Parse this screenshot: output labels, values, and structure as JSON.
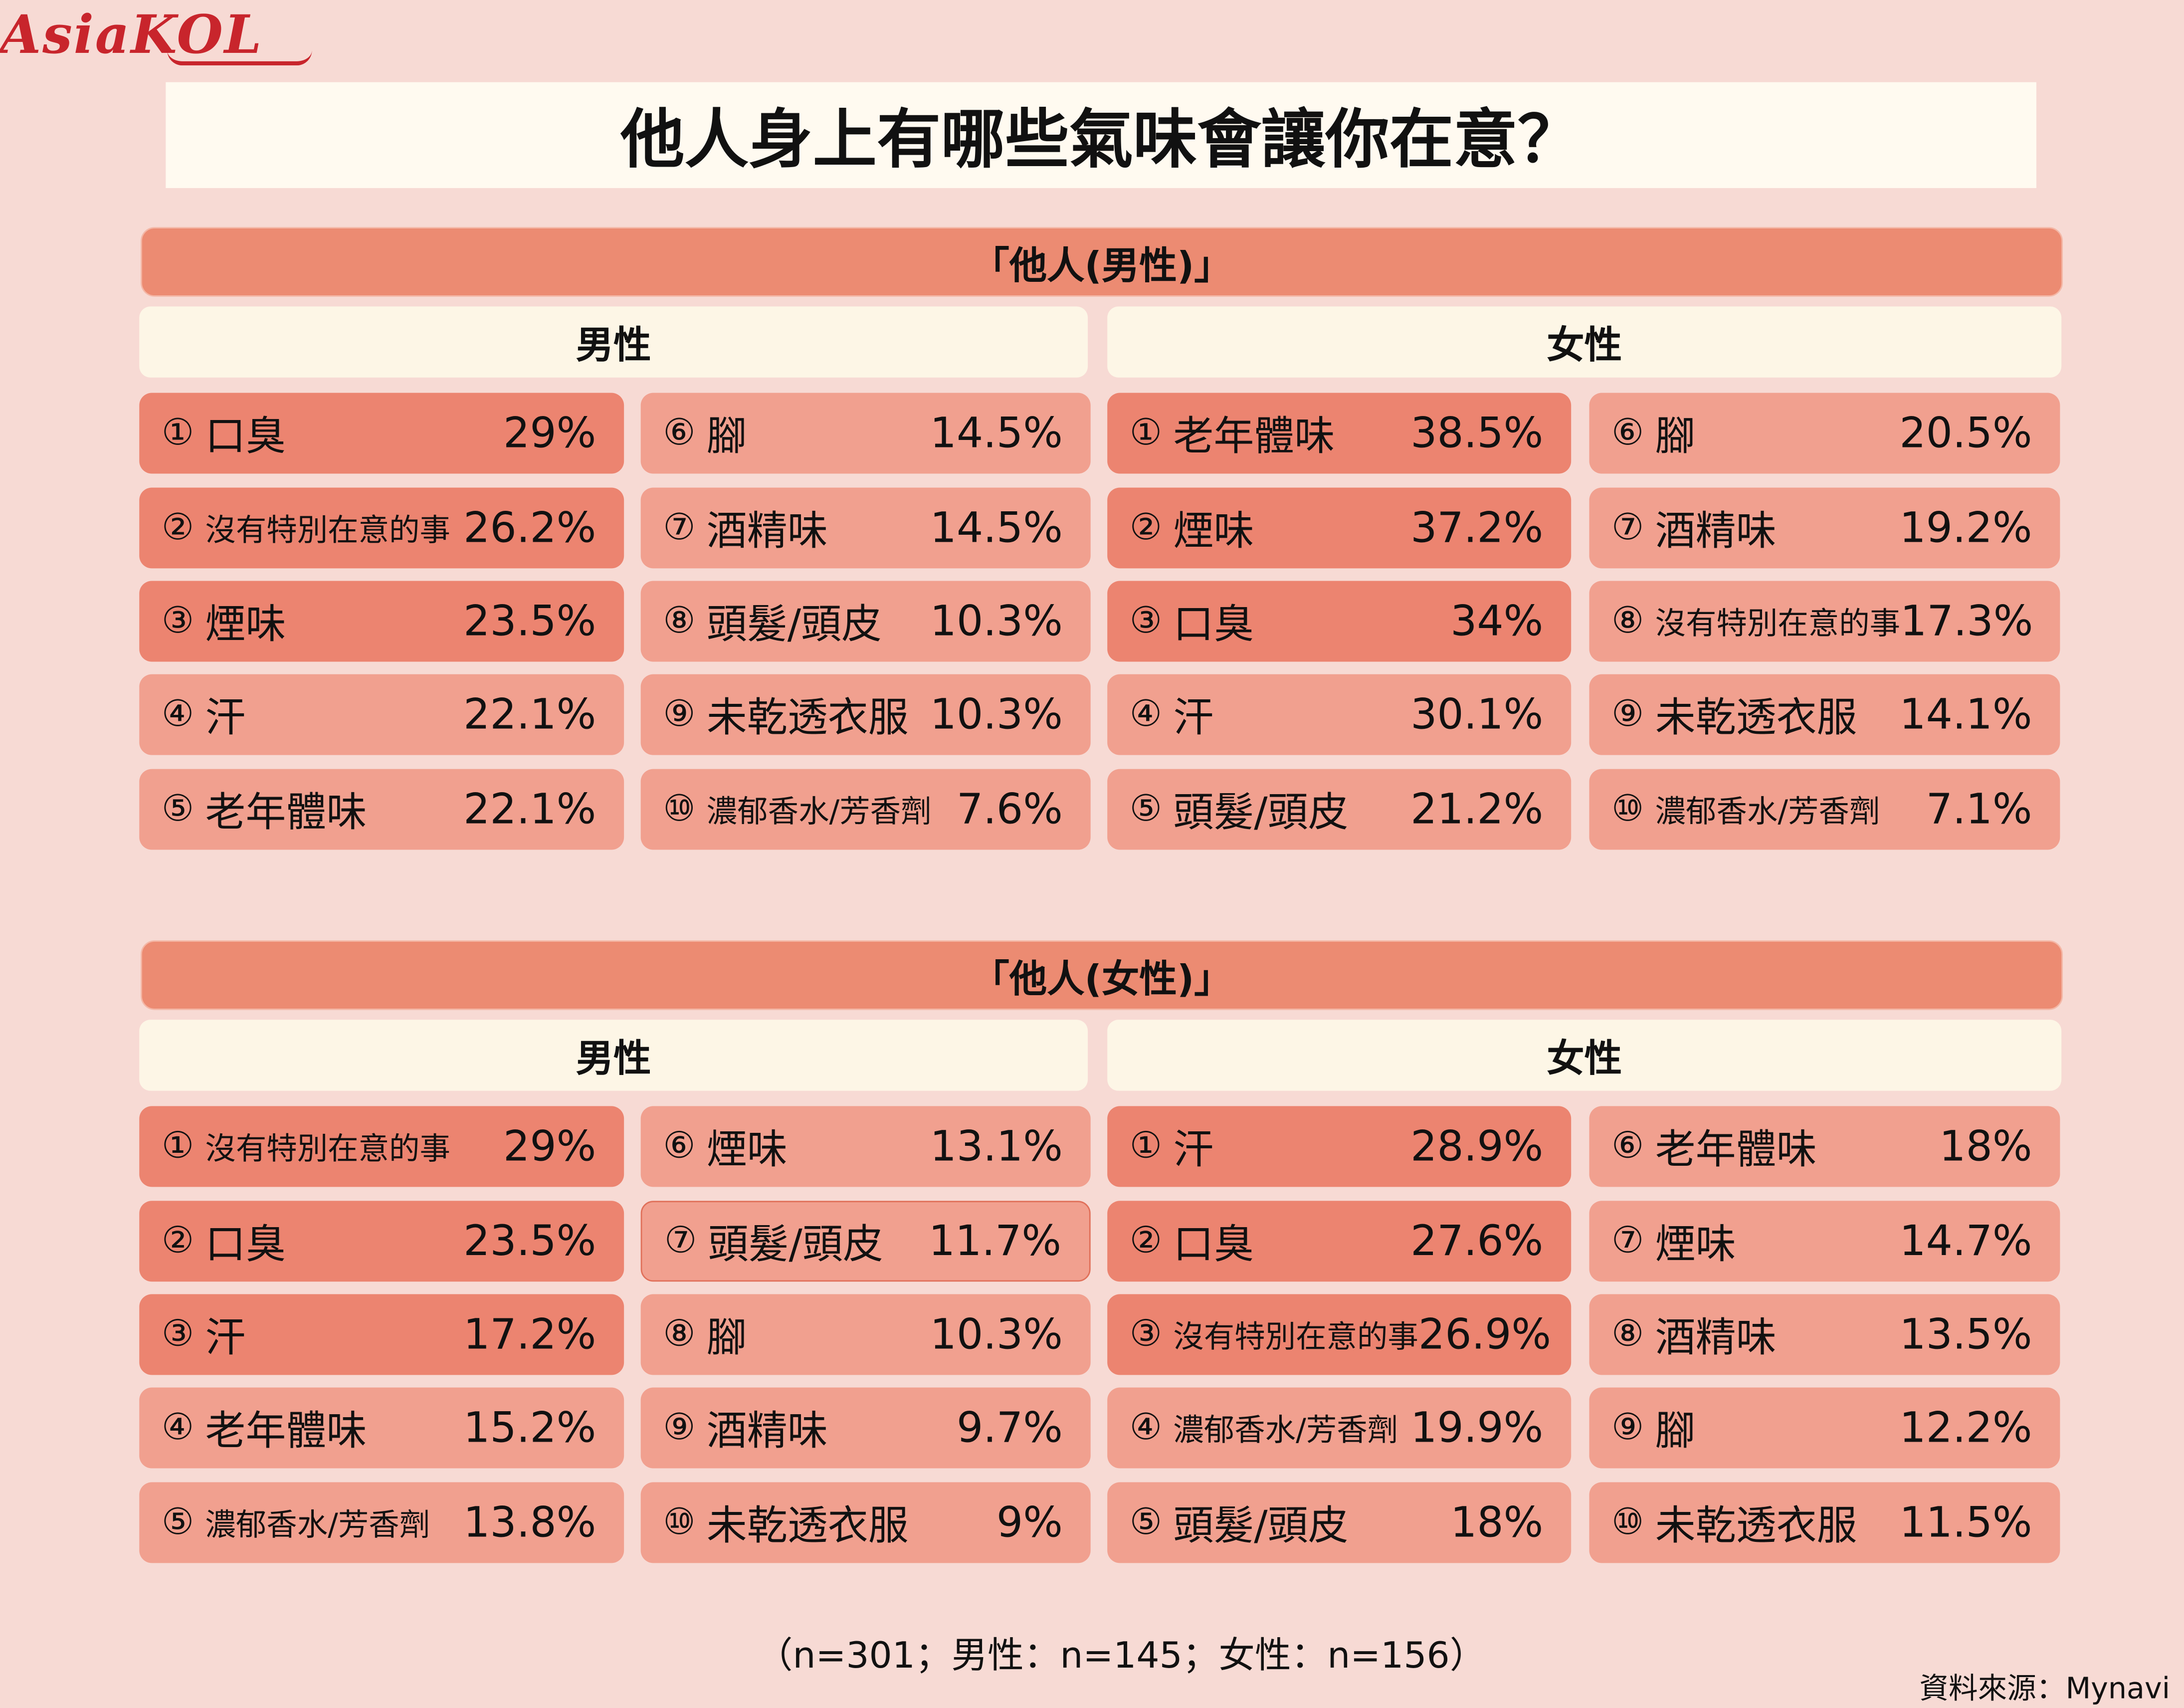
{
  "logo": "AsiaKOL",
  "title": "他人身上有哪些氣味會讓你在意？",
  "sections": [
    {
      "header": "「他人(男性)」",
      "groups": [
        {
          "label": "男性",
          "columns": [
            [
              {
                "rank": "①",
                "label": "口臭",
                "value": "29%"
              },
              {
                "rank": "②",
                "label": "沒有特別在意的事",
                "value": "26.2%"
              },
              {
                "rank": "③",
                "label": "煙味",
                "value": "23.5%"
              },
              {
                "rank": "④",
                "label": "汗",
                "value": "22.1%"
              },
              {
                "rank": "⑤",
                "label": "老年體味",
                "value": "22.1%"
              }
            ],
            [
              {
                "rank": "⑥",
                "label": "腳",
                "value": "14.5%"
              },
              {
                "rank": "⑦",
                "label": "酒精味",
                "value": "14.5%"
              },
              {
                "rank": "⑧",
                "label": "頭髮/頭皮",
                "value": "10.3%"
              },
              {
                "rank": "⑨",
                "label": "未乾透衣服",
                "value": "10.3%"
              },
              {
                "rank": "⑩",
                "label": "濃郁香水/芳香劑",
                "value": "7.6%"
              }
            ]
          ]
        },
        {
          "label": "女性",
          "columns": [
            [
              {
                "rank": "①",
                "label": "老年體味",
                "value": "38.5%"
              },
              {
                "rank": "②",
                "label": "煙味",
                "value": "37.2%"
              },
              {
                "rank": "③",
                "label": "口臭",
                "value": "34%"
              },
              {
                "rank": "④",
                "label": "汗",
                "value": "30.1%"
              },
              {
                "rank": "⑤",
                "label": "頭髮/頭皮",
                "value": "21.2%"
              }
            ],
            [
              {
                "rank": "⑥",
                "label": "腳",
                "value": "20.5%"
              },
              {
                "rank": "⑦",
                "label": "酒精味",
                "value": "19.2%"
              },
              {
                "rank": "⑧",
                "label": "沒有特別在意的事",
                "value": "17.3%"
              },
              {
                "rank": "⑨",
                "label": "未乾透衣服",
                "value": "14.1%"
              },
              {
                "rank": "⑩",
                "label": "濃郁香水/芳香劑",
                "value": "7.1%"
              }
            ]
          ]
        }
      ]
    },
    {
      "header": "「他人(女性)」",
      "groups": [
        {
          "label": "男性",
          "columns": [
            [
              {
                "rank": "①",
                "label": "沒有特別在意的事",
                "value": "29%"
              },
              {
                "rank": "②",
                "label": "口臭",
                "value": "23.5%"
              },
              {
                "rank": "③",
                "label": "汗",
                "value": "17.2%"
              },
              {
                "rank": "④",
                "label": "老年體味",
                "value": "15.2%"
              },
              {
                "rank": "⑤",
                "label": "濃郁香水/芳香劑",
                "value": "13.8%"
              }
            ],
            [
              {
                "rank": "⑥",
                "label": "煙味",
                "value": "13.1%"
              },
              {
                "rank": "⑦",
                "label": "頭髮/頭皮",
                "value": "11.7%"
              },
              {
                "rank": "⑧",
                "label": "腳",
                "value": "10.3%"
              },
              {
                "rank": "⑨",
                "label": "酒精味",
                "value": "9.7%"
              },
              {
                "rank": "⑩",
                "label": "未乾透衣服",
                "value": "9%"
              }
            ]
          ]
        },
        {
          "label": "女性",
          "columns": [
            [
              {
                "rank": "①",
                "label": "汗",
                "value": "28.9%"
              },
              {
                "rank": "②",
                "label": "口臭",
                "value": "27.6%"
              },
              {
                "rank": "③",
                "label": "沒有特別在意的事",
                "value": "26.9%"
              },
              {
                "rank": "④",
                "label": "濃郁香水/芳香劑",
                "value": "19.9%"
              },
              {
                "rank": "⑤",
                "label": "頭髮/頭皮",
                "value": "18%"
              }
            ],
            [
              {
                "rank": "⑥",
                "label": "老年體味",
                "value": "18%"
              },
              {
                "rank": "⑦",
                "label": "煙味",
                "value": "14.7%"
              },
              {
                "rank": "⑧",
                "label": "酒精味",
                "value": "13.5%"
              },
              {
                "rank": "⑨",
                "label": "腳",
                "value": "12.2%"
              },
              {
                "rank": "⑩",
                "label": "未乾透衣服",
                "value": "11.5%"
              }
            ]
          ]
        }
      ]
    }
  ],
  "sample_note": "（n=301；男性：n=145；女性：n=156）",
  "source": "資料來源：Mynavi",
  "colors": {
    "background": "#f7dad4",
    "title_box": "#fffaf0",
    "section_header": "#ec8b72",
    "group_header": "#fdf6e6",
    "top_rank": "#ec8470",
    "other_rank": "#f1a08f"
  },
  "chart_data": {
    "type": "table",
    "title": "他人身上有哪些氣味會讓你在意？",
    "tables": [
      {
        "name": "「他人(男性)」",
        "series": [
          {
            "name": "男性",
            "categories": [
              "口臭",
              "沒有特別在意的事",
              "煙味",
              "汗",
              "老年體味",
              "腳",
              "酒精味",
              "頭髮/頭皮",
              "未乾透衣服",
              "濃郁香水/芳香劑"
            ],
            "values": [
              29,
              26.2,
              23.5,
              22.1,
              22.1,
              14.5,
              14.5,
              10.3,
              10.3,
              7.6
            ]
          },
          {
            "name": "女性",
            "categories": [
              "老年體味",
              "煙味",
              "口臭",
              "汗",
              "頭髮/頭皮",
              "腳",
              "酒精味",
              "沒有特別在意的事",
              "未乾透衣服",
              "濃郁香水/芳香劑"
            ],
            "values": [
              38.5,
              37.2,
              34,
              30.1,
              21.2,
              20.5,
              19.2,
              17.3,
              14.1,
              7.1
            ]
          }
        ]
      },
      {
        "name": "「他人(女性)」",
        "series": [
          {
            "name": "男性",
            "categories": [
              "沒有特別在意的事",
              "口臭",
              "汗",
              "老年體味",
              "濃郁香水/芳香劑",
              "煙味",
              "頭髮/頭皮",
              "腳",
              "酒精味",
              "未乾透衣服"
            ],
            "values": [
              29,
              23.5,
              17.2,
              15.2,
              13.8,
              13.1,
              11.7,
              10.3,
              9.7,
              9
            ]
          },
          {
            "name": "女性",
            "categories": [
              "汗",
              "口臭",
              "沒有特別在意的事",
              "濃郁香水/芳香劑",
              "頭髮/頭皮",
              "老年體味",
              "煙味",
              "酒精味",
              "腳",
              "未乾透衣服"
            ],
            "values": [
              28.9,
              27.6,
              26.9,
              19.9,
              18,
              18,
              14.7,
              13.5,
              12.2,
              11.5
            ]
          }
        ]
      }
    ]
  }
}
